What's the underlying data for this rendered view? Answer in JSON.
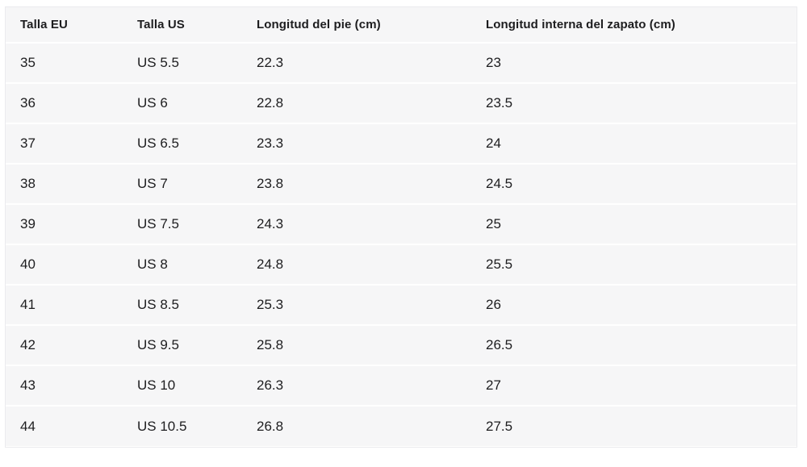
{
  "table": {
    "columns": [
      {
        "label": "Talla EU"
      },
      {
        "label": "Talla US"
      },
      {
        "label": "Longitud del pie (cm)"
      },
      {
        "label": "Longitud interna del zapato (cm)"
      }
    ],
    "rows": [
      [
        "35",
        "US 5.5",
        "22.3",
        "23"
      ],
      [
        "36",
        "US 6",
        "22.8",
        "23.5"
      ],
      [
        "37",
        "US 6.5",
        "23.3",
        "24"
      ],
      [
        "38",
        "US 7",
        "23.8",
        "24.5"
      ],
      [
        "39",
        "US 7.5",
        "24.3",
        "25"
      ],
      [
        "40",
        "US 8",
        "24.8",
        "25.5"
      ],
      [
        "41",
        "US 8.5",
        "25.3",
        "26"
      ],
      [
        "42",
        "US 9.5",
        "25.8",
        "26.5"
      ],
      [
        "43",
        "US 10",
        "26.3",
        "27"
      ],
      [
        "44",
        "US 10.5",
        "26.8",
        "27.5"
      ]
    ]
  },
  "colors": {
    "row_background": "#f6f6f7",
    "separator": "#ffffff",
    "border": "#ebebee",
    "text": "#1d1d1f",
    "page_background": "#ffffff"
  }
}
